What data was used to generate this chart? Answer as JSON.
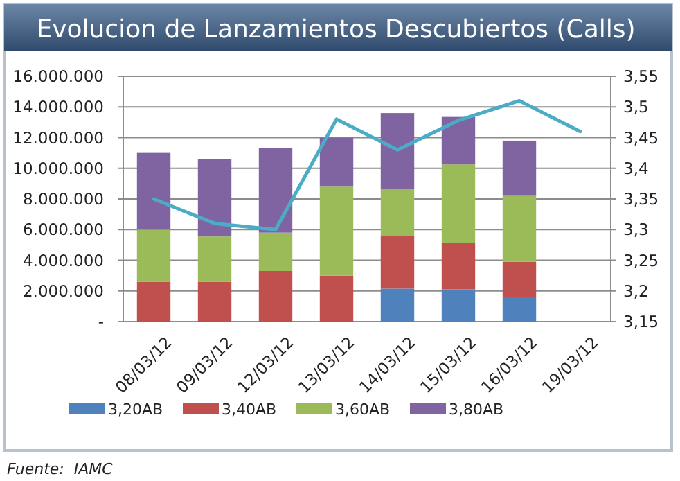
{
  "chart_data": {
    "type": "bar",
    "title": "Evolucion de Lanzamientos Descubiertos (Calls)",
    "stacked": true,
    "grid": "y",
    "legend": "bottom",
    "categories": [
      "08/03/12",
      "09/03/12",
      "12/03/12",
      "13/03/12",
      "14/03/12",
      "15/03/12",
      "16/03/12",
      "19/03/12"
    ],
    "series": [
      {
        "name": "3,20AB",
        "color": "#4f81bd",
        "values": [
          null,
          null,
          null,
          null,
          2150000,
          2100000,
          1600000,
          null
        ]
      },
      {
        "name": "3,40AB",
        "color": "#c0504d",
        "values": [
          2600000,
          2600000,
          3300000,
          3000000,
          3450000,
          3050000,
          2300000,
          null
        ]
      },
      {
        "name": "3,60AB",
        "color": "#9bbb59",
        "values": [
          3400000,
          2950000,
          2500000,
          5800000,
          3050000,
          5100000,
          4300000,
          null
        ]
      },
      {
        "name": "3,80AB",
        "color": "#8064a2",
        "values": [
          5000000,
          5050000,
          5500000,
          3200000,
          4950000,
          3100000,
          3600000,
          null
        ]
      },
      {
        "type": "line",
        "axis": "y2",
        "color": "#4bacc6",
        "values": [
          3.35,
          3.31,
          3.3,
          3.48,
          3.43,
          3.478,
          3.51,
          3.46
        ]
      }
    ],
    "ylim": [
      0,
      16000000
    ],
    "yticks": [
      {
        "value": 0,
        "label": "-"
      },
      {
        "value": 2000000,
        "label": "2.000.000"
      },
      {
        "value": 4000000,
        "label": "4.000.000"
      },
      {
        "value": 6000000,
        "label": "6.000.000"
      },
      {
        "value": 8000000,
        "label": "8.000.000"
      },
      {
        "value": 10000000,
        "label": "10.000.000"
      },
      {
        "value": 12000000,
        "label": "12.000.000"
      },
      {
        "value": 14000000,
        "label": "14.000.000"
      },
      {
        "value": 16000000,
        "label": "16.000.000"
      }
    ],
    "y2lim": [
      3.15,
      3.55
    ],
    "y2ticks": [
      {
        "value": 3.15,
        "label": "3,15"
      },
      {
        "value": 3.2,
        "label": "3,2"
      },
      {
        "value": 3.25,
        "label": "3,25"
      },
      {
        "value": 3.3,
        "label": "3,3"
      },
      {
        "value": 3.35,
        "label": "3,35"
      },
      {
        "value": 3.4,
        "label": "3,4"
      },
      {
        "value": 3.45,
        "label": "3,45"
      },
      {
        "value": 3.5,
        "label": "3,5"
      },
      {
        "value": 3.55,
        "label": "3,55"
      }
    ],
    "annotations": [
      "Fuente:  IAMC"
    ]
  }
}
